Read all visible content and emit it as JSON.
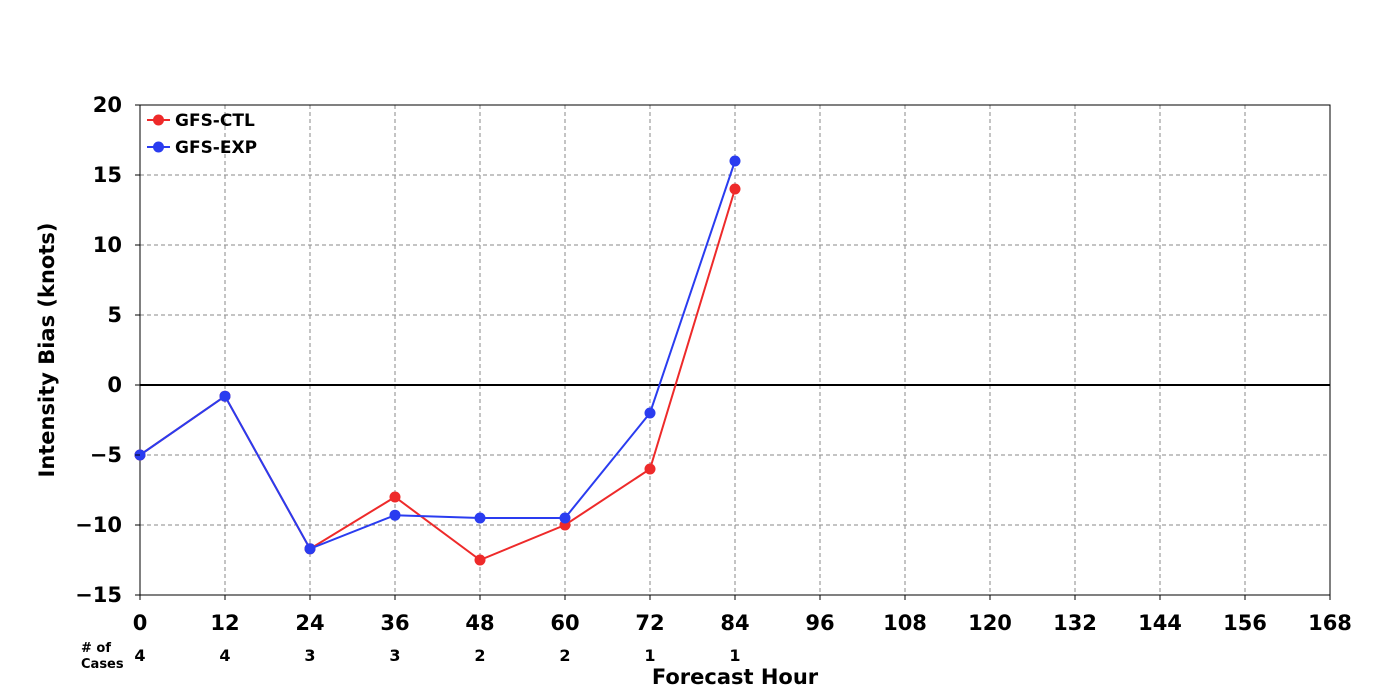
{
  "chart_data": {
    "type": "line",
    "xlabel": "Forecast Hour",
    "ylabel": "Intensity Bias (knots)",
    "xlim": [
      0,
      168
    ],
    "ylim": [
      -15,
      20
    ],
    "x_ticks": [
      0,
      12,
      24,
      36,
      48,
      60,
      72,
      84,
      96,
      108,
      120,
      132,
      144,
      156,
      168
    ],
    "y_ticks": [
      -15,
      -10,
      -5,
      0,
      5,
      10,
      15,
      20
    ],
    "y_tick_labels": [
      "−15",
      "−10",
      "−5",
      "0",
      "5",
      "10",
      "15",
      "20"
    ],
    "grid": true,
    "zero_line": true,
    "legend_position": "top-left",
    "series": [
      {
        "name": "GFS-CTL",
        "color": "#ee2a2a",
        "x": [
          0,
          12,
          24,
          36,
          48,
          60,
          72,
          84
        ],
        "y": [
          -5.0,
          -0.8,
          -11.7,
          -8.0,
          -12.5,
          -10.0,
          -6.0,
          14.0
        ]
      },
      {
        "name": "GFS-EXP",
        "color": "#2a3cf0",
        "x": [
          0,
          12,
          24,
          36,
          48,
          60,
          72,
          84
        ],
        "y": [
          -5.0,
          -0.8,
          -11.7,
          -9.3,
          -9.5,
          -9.5,
          -2.0,
          16.0
        ]
      }
    ],
    "cases": {
      "label_line1": "# of",
      "label_line2": "Cases",
      "x": [
        0,
        12,
        24,
        36,
        48,
        60,
        72,
        84
      ],
      "counts": [
        "4",
        "4",
        "3",
        "3",
        "2",
        "2",
        "1",
        "1"
      ]
    }
  }
}
